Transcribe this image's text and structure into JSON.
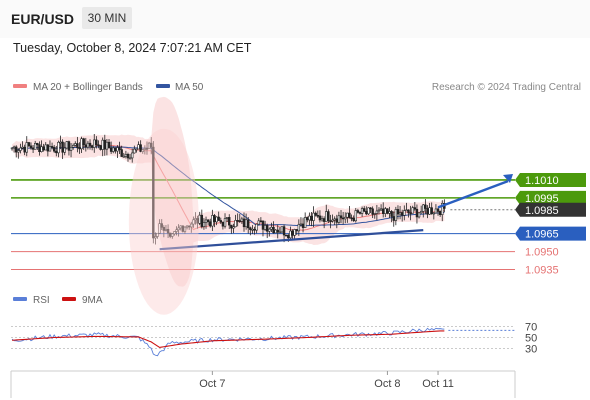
{
  "header": {
    "symbol": "EUR/USD",
    "timeframe": "30 MIN",
    "datetime": "Tuesday, October 8, 2024 7:07:21 AM CET"
  },
  "legend": {
    "ma20": "MA 20 + Bollinger Bands",
    "ma50": "MA 50",
    "credit": "Research © 2024 Trading Central"
  },
  "colors": {
    "ma20": "#f08080",
    "ma50": "#3355a0",
    "resistance": "#4c9a0c",
    "support_blue": "#2a5fbf",
    "support_red": "#e57373",
    "last": "#333333",
    "rsi": "#5a7fd8",
    "rsi_ma": "#cc1111",
    "bollinger": "#fbe0e0"
  },
  "chart_data": [
    {
      "type": "line",
      "title": "",
      "series": [
        {
          "name": "EUR/USD price (approx.)",
          "values": [
            [
              0,
              1.1037
            ],
            [
              12,
              1.1038
            ],
            [
              24,
              1.1037
            ],
            [
              34,
              1.104
            ],
            [
              40,
              1.1041
            ],
            [
              54,
              1.1032
            ],
            [
              62,
              1.1036
            ],
            [
              66,
              1.1038
            ],
            [
              67,
              1.0962
            ],
            [
              71,
              1.0974
            ],
            [
              75,
              1.0958
            ],
            [
              80,
              1.0971
            ],
            [
              88,
              1.0976
            ],
            [
              100,
              1.0975
            ],
            [
              120,
              1.0972
            ],
            [
              132,
              1.0966
            ],
            [
              136,
              1.0973
            ],
            [
              140,
              1.0977
            ],
            [
              150,
              1.098
            ],
            [
              160,
              1.0978
            ],
            [
              165,
              1.0982
            ],
            [
              174,
              1.0982
            ],
            [
              180,
              1.098
            ],
            [
              190,
              1.0983
            ],
            [
              198,
              1.0985
            ],
            [
              205,
              1.0986
            ]
          ]
        }
      ],
      "levels": [
        {
          "value": 1.101,
          "label": "1.1010",
          "kind": "resistance"
        },
        {
          "value": 1.0995,
          "label": "1.0995",
          "kind": "resistance"
        },
        {
          "value": 1.0985,
          "label": "1.0985",
          "kind": "last price"
        },
        {
          "value": 1.0965,
          "label": "1.0965",
          "kind": "support"
        },
        {
          "value": 1.095,
          "label": "1.0950",
          "kind": "support"
        },
        {
          "value": 1.0935,
          "label": "1.0935",
          "kind": "support"
        }
      ],
      "x_ticks": [
        {
          "index": 95,
          "label": "Oct 7"
        },
        {
          "index": 178,
          "label": "Oct 8"
        },
        {
          "index": 202,
          "label": "Oct 11"
        }
      ],
      "ylim": [
        1.0922,
        1.1077
      ],
      "xlim": [
        0,
        220
      ],
      "legend_position": "top-left"
    },
    {
      "type": "line",
      "title": "",
      "series": [
        {
          "name": "RSI",
          "values": [
            [
              0,
              45
            ],
            [
              20,
              52
            ],
            [
              40,
              55
            ],
            [
              60,
              50
            ],
            [
              66,
              30
            ],
            [
              68,
              15
            ],
            [
              75,
              40
            ],
            [
              95,
              46
            ],
            [
              120,
              48
            ],
            [
              140,
              51
            ],
            [
              160,
              55
            ],
            [
              180,
              58
            ],
            [
              195,
              64
            ],
            [
              203,
              63
            ]
          ]
        },
        {
          "name": "9MA",
          "values": [
            [
              0,
              45
            ],
            [
              20,
              50
            ],
            [
              40,
              52
            ],
            [
              60,
              51
            ],
            [
              66,
              42
            ],
            [
              70,
              32
            ],
            [
              80,
              38
            ],
            [
              95,
              44
            ],
            [
              120,
              47
            ],
            [
              140,
              50
            ],
            [
              160,
              54
            ],
            [
              180,
              56
            ],
            [
              195,
              60
            ],
            [
              203,
              62
            ]
          ]
        }
      ],
      "y_ticks": [
        30,
        50,
        70
      ],
      "ylim": [
        0,
        100
      ],
      "legend_position": "top-left"
    }
  ]
}
